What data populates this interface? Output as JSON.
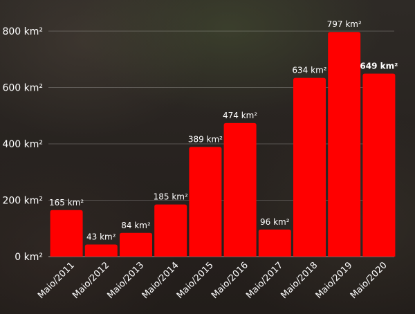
{
  "chart_data": {
    "type": "bar",
    "categories": [
      "Maio/2011",
      "Maio/2012",
      "Maio/2013",
      "Maio/2014",
      "Maio/2015",
      "Maio/2016",
      "Maio/2017",
      "Maio/2018",
      "Maio/2019",
      "Maio/2020"
    ],
    "values": [
      165,
      43,
      84,
      185,
      389,
      474,
      96,
      634,
      797,
      649
    ],
    "data_labels": [
      "165 km²",
      "43 km²",
      "84 km²",
      "185 km²",
      "389 km²",
      "474 km²",
      "96 km²",
      "634 km²",
      "797 km²",
      "649 km²"
    ],
    "highlight_index": 9,
    "y_ticks": [
      0,
      200,
      400,
      600,
      800
    ],
    "y_tick_labels": [
      "0 km²",
      "200 km²",
      "400 km²",
      "600 km²",
      "800 km²"
    ],
    "ylim": [
      0,
      800
    ],
    "grid": true,
    "bar_color": "#ff0000"
  }
}
